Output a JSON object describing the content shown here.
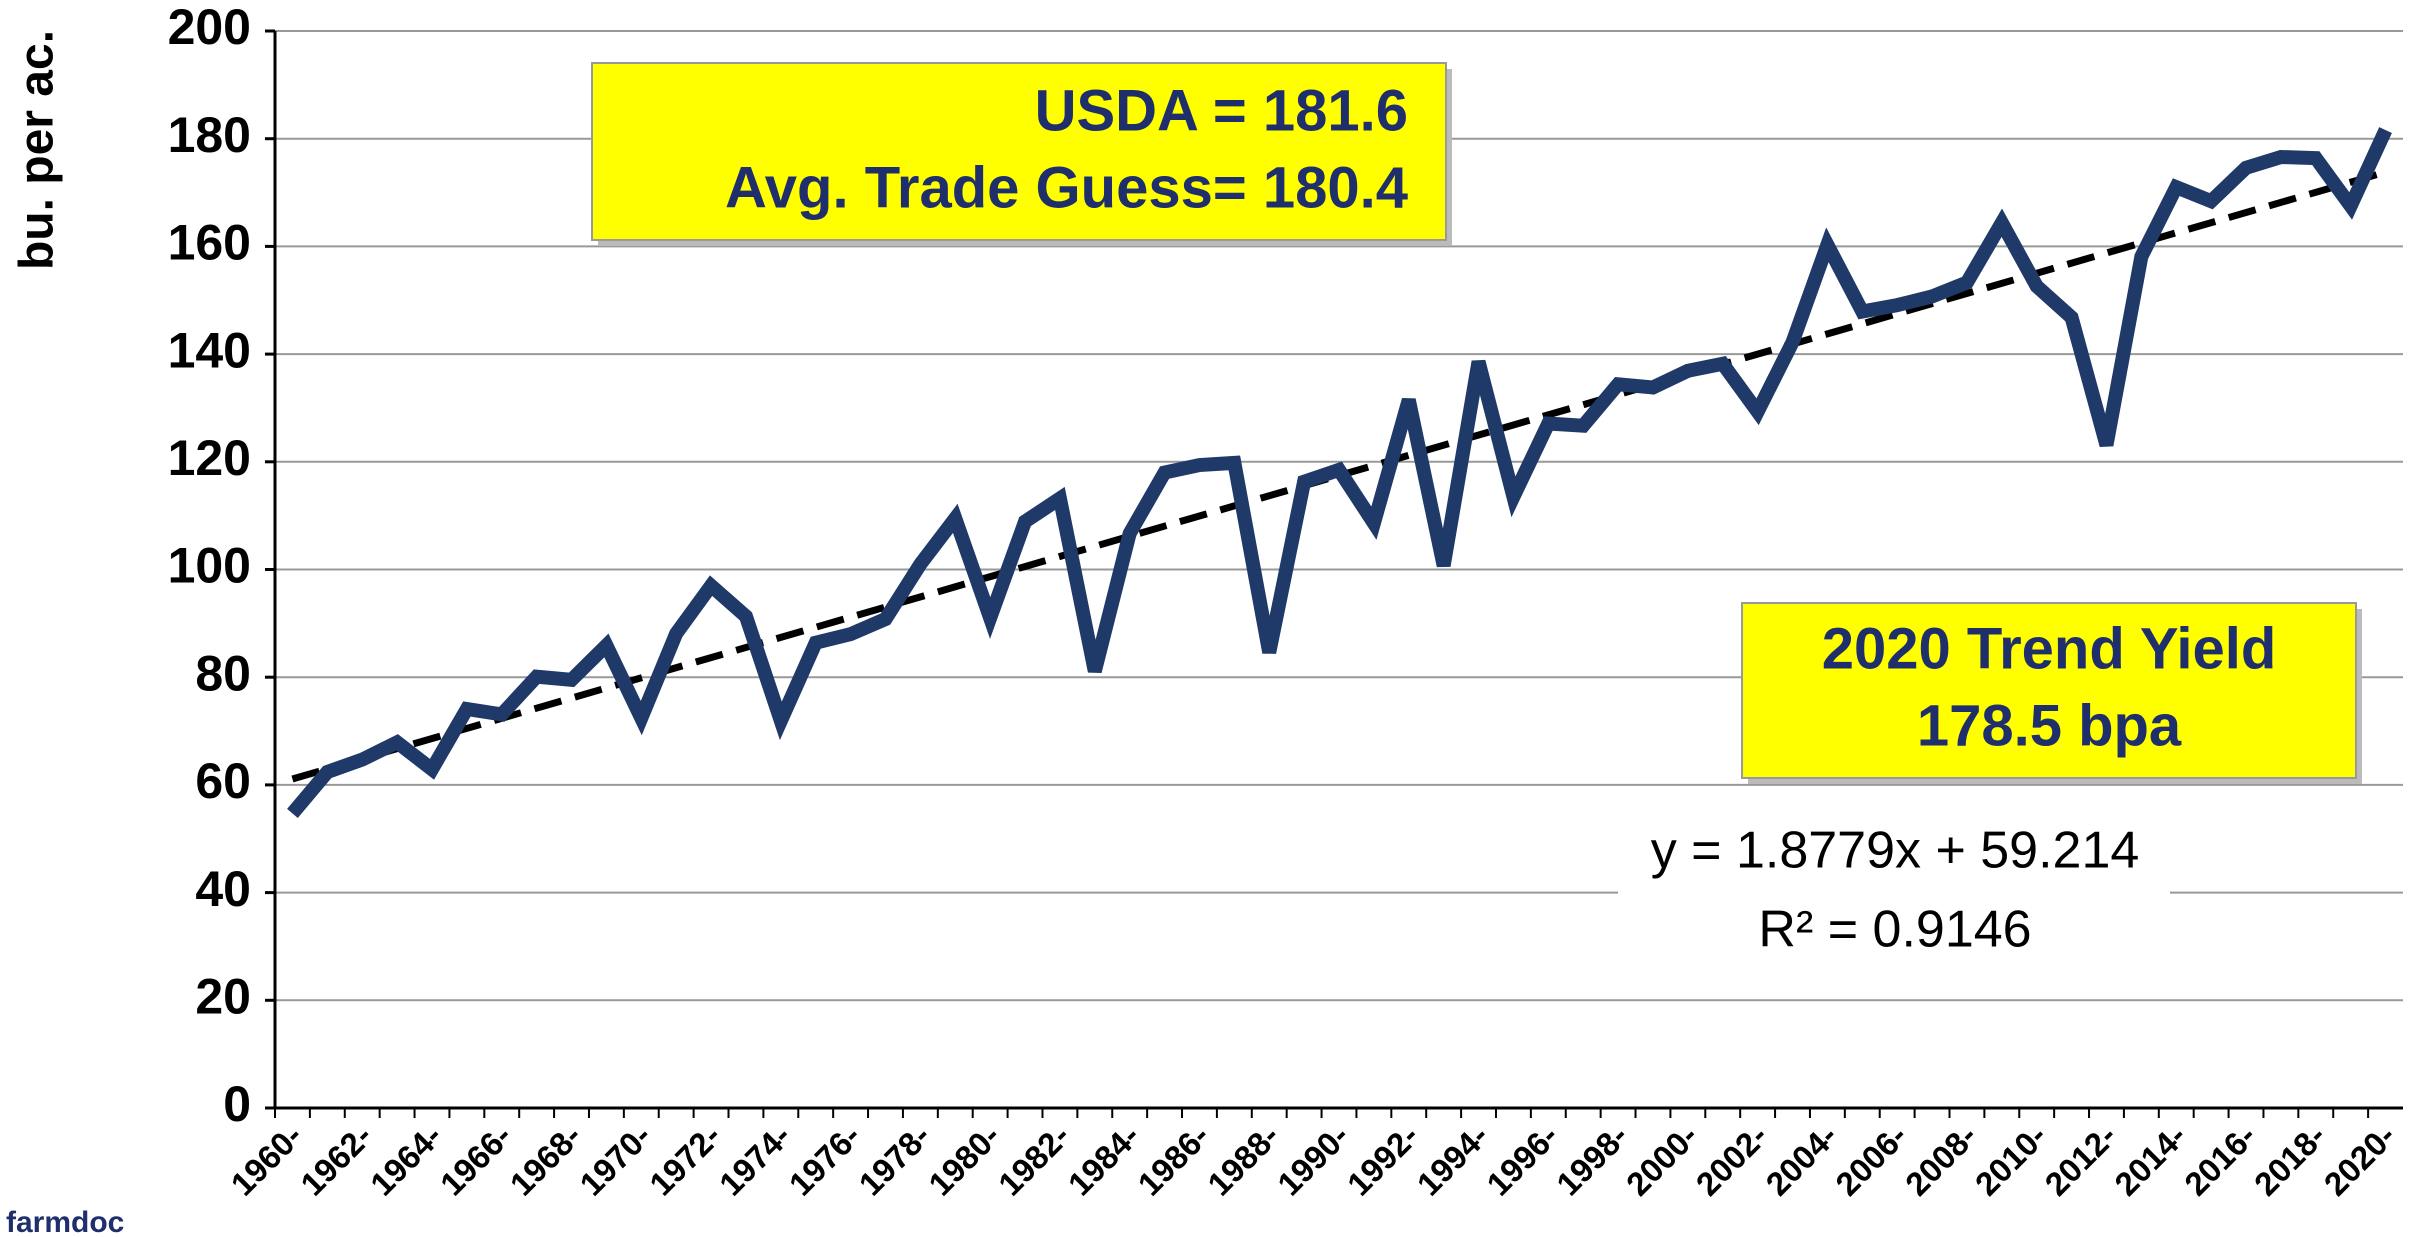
{
  "chart_data": {
    "type": "line",
    "y_label": "bu. per ac.",
    "categories": [
      "1960-",
      null,
      "1962-",
      null,
      "1964-",
      null,
      "1966-",
      null,
      "1968-",
      null,
      "1970-",
      null,
      "1972-",
      null,
      "1974-",
      null,
      "1976-",
      null,
      "1978-",
      null,
      "1980-",
      null,
      "1982-",
      null,
      "1984-",
      null,
      "1986-",
      null,
      "1988-",
      null,
      "1990-",
      null,
      "1992-",
      null,
      "1994-",
      null,
      "1996-",
      null,
      "1998-",
      null,
      "2000-",
      null,
      "2002-",
      null,
      "2004-",
      null,
      "2006-",
      null,
      "2008-",
      null,
      "2010-",
      null,
      "2012-",
      null,
      "2014-",
      null,
      "2016-",
      null,
      "2018-",
      null,
      "2020-"
    ],
    "values": [
      54.7,
      62.4,
      64.7,
      67.9,
      62.9,
      74.1,
      73.1,
      80.1,
      79.5,
      85.9,
      72.4,
      88.1,
      97.0,
      91.3,
      71.9,
      86.4,
      88.0,
      90.8,
      101.0,
      109.5,
      91.0,
      108.9,
      113.2,
      81.1,
      106.7,
      118.0,
      119.4,
      119.8,
      84.6,
      116.3,
      118.5,
      108.6,
      131.5,
      100.7,
      138.6,
      113.5,
      127.1,
      126.7,
      134.4,
      133.8,
      136.9,
      138.2,
      129.3,
      142.2,
      160.3,
      147.9,
      149.1,
      150.7,
      153.3,
      164.4,
      152.6,
      146.8,
      123.1,
      158.1,
      171.0,
      168.4,
      174.6,
      176.6,
      176.4,
      167.5,
      181.6
    ],
    "color": "#1f3a68",
    "trend_values": [
      61.1,
      173.8
    ],
    "trend_color": "#000000",
    "ylim": [
      0,
      200
    ],
    "yticks": [
      0,
      20,
      40,
      60,
      80,
      100,
      120,
      140,
      160,
      180,
      200
    ],
    "grid": true,
    "annotations": {
      "usda_box": [
        "USDA = 181.6",
        "Avg. Trade Guess= 180.4"
      ],
      "trend_box": [
        "2020 Trend Yield",
        "178.5 bpa"
      ],
      "equation": [
        "y = 1.8779x + 59.214",
        "R² = 0.9146"
      ]
    },
    "source": "farmdoc"
  }
}
